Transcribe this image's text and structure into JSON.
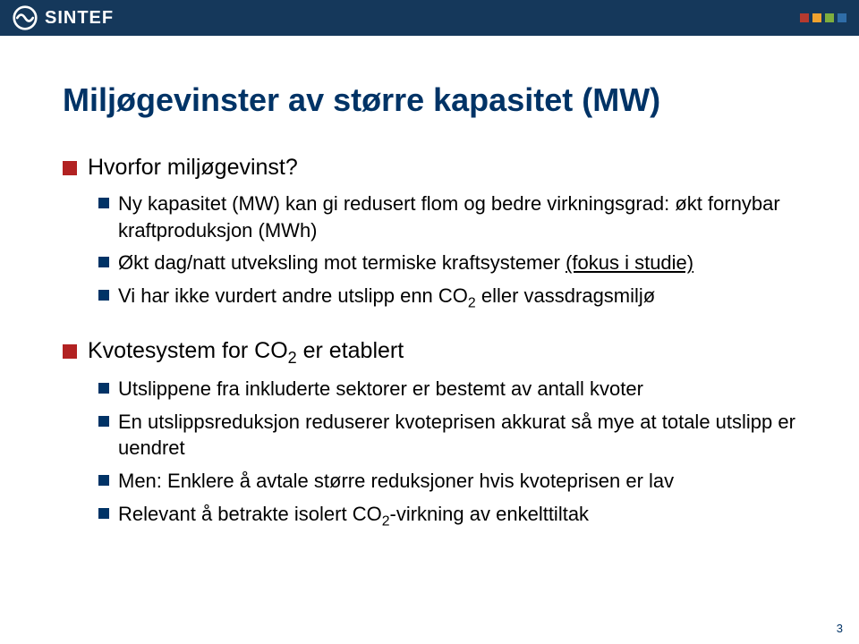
{
  "colors": {
    "header_bg": "#15385b",
    "header_fg": "#ffffff",
    "dot1": "#b53a2f",
    "dot2": "#f0a22f",
    "dot3": "#7fae3e",
    "dot4": "#2f6da8",
    "title_color": "#003366",
    "body_color": "#000000",
    "bullet_l1": "#b22222",
    "bullet_l2": "#003366",
    "pagenum_color": "#003366"
  },
  "logo_text": "SINTEF",
  "title": "Miljøgevinster av større kapasitet (MW)",
  "bullets": [
    {
      "level": 1,
      "text": "Hvorfor miljøgevinst?"
    },
    {
      "level": 2,
      "text": "Ny kapasitet (MW) kan gi redusert flom og bedre virkningsgrad: økt fornybar kraftproduksjon (MWh)"
    },
    {
      "level": 2,
      "subIsCO2": false,
      "text_pre": "Økt dag/natt utveksling mot termiske kraftsystemer ",
      "text_u": "(fokus i studie)"
    },
    {
      "level": 2,
      "co2": true,
      "pre": "Vi har ikke vurdert andre utslipp enn CO",
      "post": " eller vassdragsmiljø"
    },
    {
      "level": 1,
      "gap": true,
      "co2": true,
      "pre": "Kvotesystem for CO",
      "post": " er etablert"
    },
    {
      "level": 2,
      "text": "Utslippene fra inkluderte sektorer er bestemt av antall kvoter"
    },
    {
      "level": 2,
      "text": "En utslippsreduksjon reduserer kvoteprisen akkurat så mye at totale utslipp er uendret"
    },
    {
      "level": 2,
      "text": "Men: Enklere å avtale større reduksjoner hvis kvoteprisen er lav"
    },
    {
      "level": 2,
      "co2": true,
      "pre": "Relevant å betrakte isolert CO",
      "post": "-virkning av enkelttiltak"
    }
  ],
  "page_number": "3"
}
